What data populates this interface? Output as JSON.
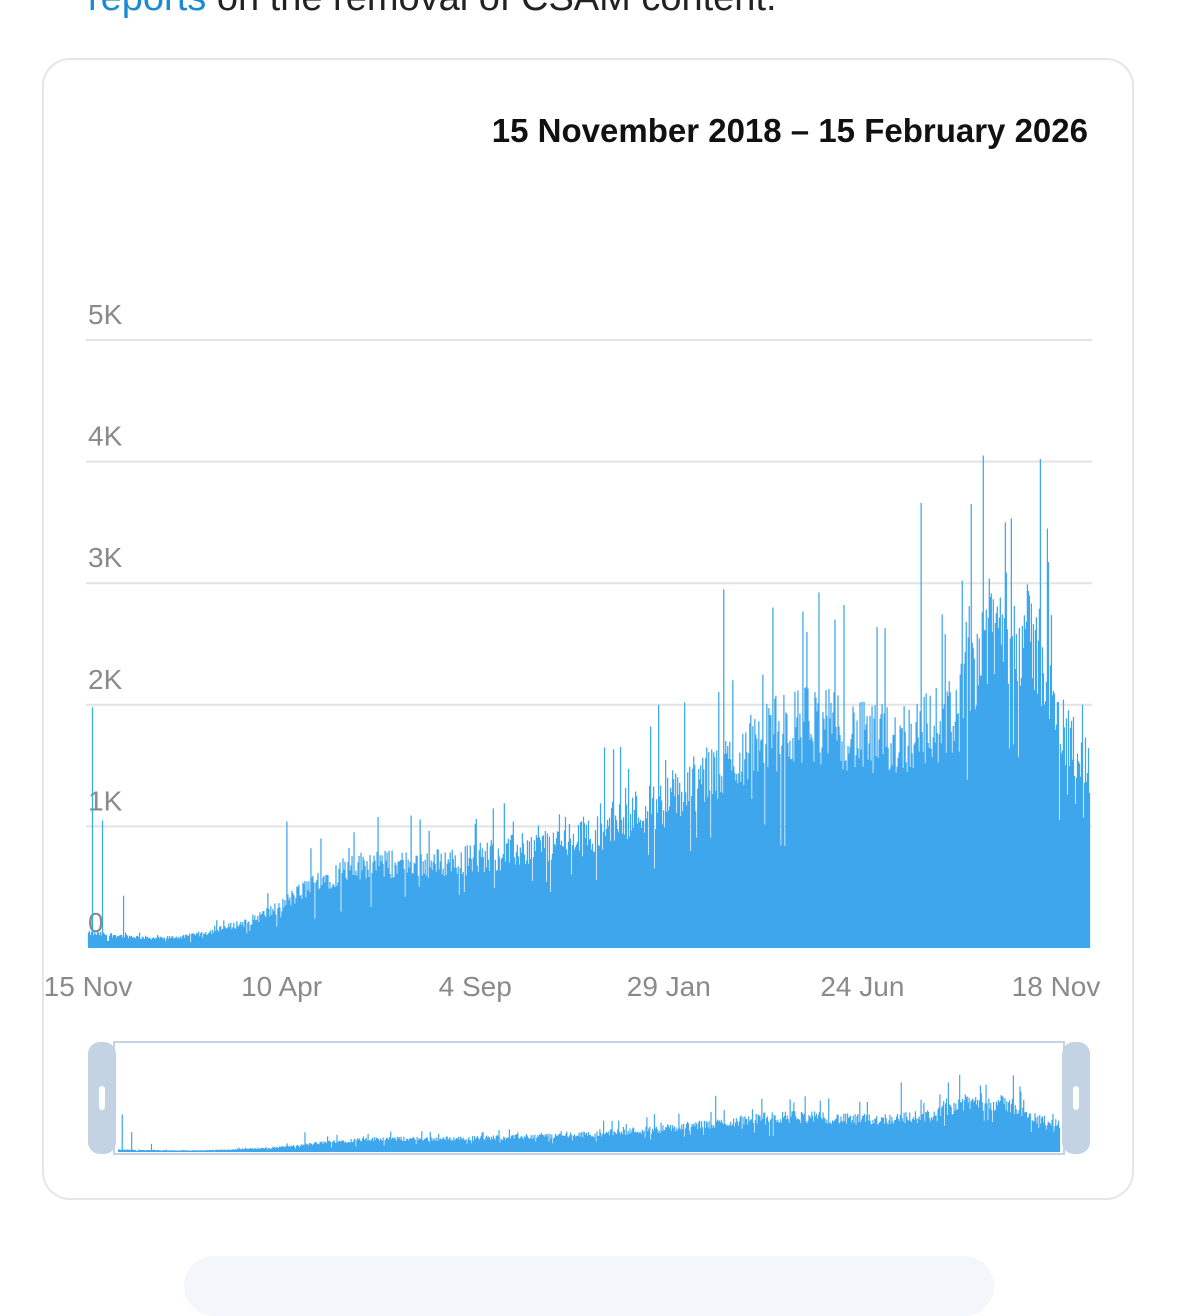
{
  "intro": {
    "link_text": "reports",
    "rest_text": " on the removal of CSAM content."
  },
  "colors": {
    "bar": "#3ea6ec",
    "grid": "#e3e3e3",
    "tick": "#8a8a8a",
    "navigator_handle": "#c3d3e3"
  },
  "chart_data": {
    "type": "bar",
    "title": "15 November 2018 – 15 February 2026",
    "xlabel": "",
    "ylabel": "",
    "ylim": [
      0,
      5000
    ],
    "yticks": [
      {
        "value": 0,
        "label": "0"
      },
      {
        "value": 1000,
        "label": "1K"
      },
      {
        "value": 2000,
        "label": "2K"
      },
      {
        "value": 3000,
        "label": "3K"
      },
      {
        "value": 4000,
        "label": "4K"
      },
      {
        "value": 5000,
        "label": "5K"
      }
    ],
    "xticks": [
      "15 Nov",
      "10 Apr",
      "4 Sep",
      "29 Jan",
      "24 Jun",
      "18 Nov"
    ],
    "grid": true,
    "legend": "none",
    "navigator": true,
    "trend_points": [
      [
        0,
        120
      ],
      [
        2,
        110
      ],
      [
        5,
        90
      ],
      [
        7,
        80
      ],
      [
        10,
        95
      ],
      [
        13,
        150
      ],
      [
        16,
        220
      ],
      [
        19,
        330
      ],
      [
        21,
        450
      ],
      [
        23,
        560
      ],
      [
        26,
        640
      ],
      [
        28,
        700
      ],
      [
        31,
        680
      ],
      [
        35,
        700
      ],
      [
        38,
        730
      ],
      [
        41,
        770
      ],
      [
        44,
        820
      ],
      [
        47,
        860
      ],
      [
        51,
        960
      ],
      [
        53,
        1070
      ],
      [
        56,
        1150
      ],
      [
        59,
        1250
      ],
      [
        61,
        1380
      ],
      [
        63,
        1450
      ],
      [
        65,
        1580
      ],
      [
        68,
        1750
      ],
      [
        72,
        1850
      ],
      [
        75,
        1800
      ],
      [
        78,
        1700
      ],
      [
        81,
        1720
      ],
      [
        84,
        1800
      ],
      [
        87,
        1950
      ],
      [
        89,
        2500
      ],
      [
        91,
        2650
      ],
      [
        93,
        2600
      ],
      [
        95,
        2450
      ],
      [
        96,
        2050
      ],
      [
        97,
        1800
      ],
      [
        99,
        1650
      ],
      [
        100,
        1450
      ]
    ],
    "spikes": [
      [
        0.4,
        1980
      ],
      [
        1.4,
        1050
      ],
      [
        3.5,
        430
      ],
      [
        19.8,
        1040
      ],
      [
        23.2,
        900
      ],
      [
        32.2,
        1090
      ],
      [
        42.4,
        1040
      ],
      [
        47,
        1100
      ],
      [
        51.6,
        1650
      ],
      [
        57,
        2000
      ],
      [
        59.6,
        2020
      ],
      [
        63.5,
        2950
      ],
      [
        68.4,
        2800
      ],
      [
        71.8,
        2600
      ],
      [
        74.6,
        2700
      ],
      [
        83.2,
        3660
      ],
      [
        88.2,
        3650
      ],
      [
        89.4,
        4050
      ],
      [
        91.6,
        3500
      ],
      [
        95.1,
        4020
      ],
      [
        95.8,
        3450
      ],
      [
        99.3,
        2000
      ]
    ]
  }
}
